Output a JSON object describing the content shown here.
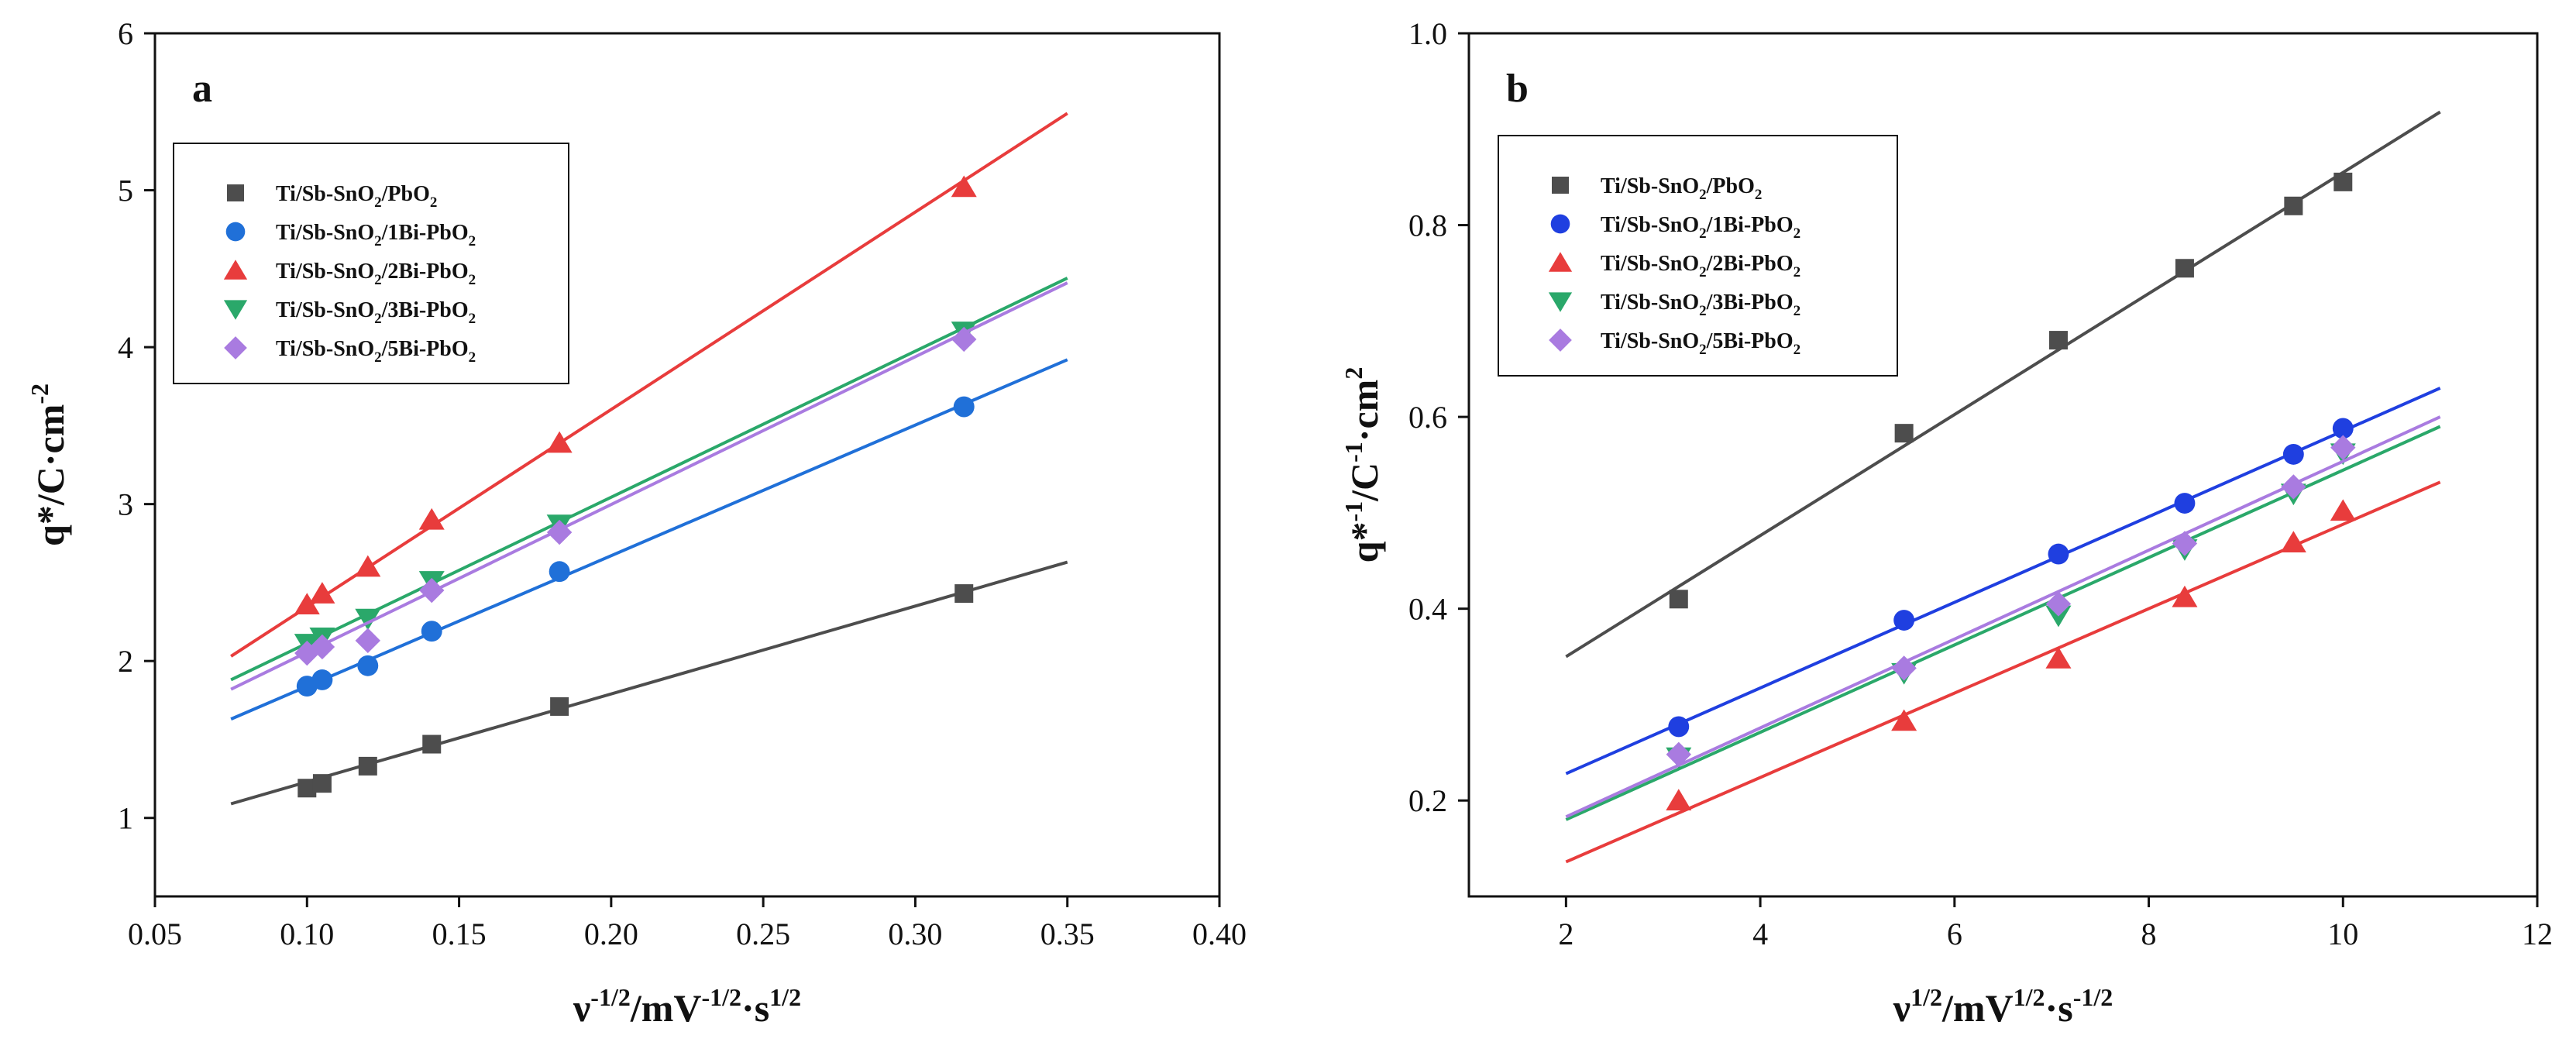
{
  "chart_data": [
    {
      "type": "scatter",
      "panel_label": "a",
      "xlabel": {
        "pre": "ν",
        "sup1": "-1/2",
        "mid": "/mV",
        "sup2": "-1/2",
        "post": "·s",
        "sup3": "1/2"
      },
      "ylabel": {
        "pre": "q*/C·cm",
        "sup": "-2"
      },
      "xlim": [
        0.05,
        0.4
      ],
      "ylim": [
        0.5,
        6
      ],
      "x_ticks": [
        "0.05",
        "0.10",
        "0.15",
        "0.20",
        "0.25",
        "0.30",
        "0.35",
        "0.40"
      ],
      "x_tick_values": [
        0.05,
        0.1,
        0.15,
        0.2,
        0.25,
        0.3,
        0.35,
        0.4
      ],
      "y_ticks": [
        "1",
        "2",
        "3",
        "4",
        "5",
        "6"
      ],
      "y_tick_values": [
        1,
        2,
        3,
        4,
        5,
        6
      ],
      "legend_position": "upper-left",
      "series": [
        {
          "name": "Ti/Sb-SnO2/PbO2",
          "label_parts": [
            "Ti/Sb-SnO",
            "2",
            "/PbO",
            "2"
          ],
          "color": "#4d4d4d",
          "marker": "square",
          "x": [
            0.1,
            0.105,
            0.12,
            0.141,
            0.183,
            0.316
          ],
          "y": [
            1.19,
            1.22,
            1.33,
            1.47,
            1.71,
            2.43
          ],
          "fit_x": [
            0.075,
            0.35
          ],
          "fit_y": [
            1.09,
            2.63
          ]
        },
        {
          "name": "Ti/Sb-SnO2/1Bi-PbO2",
          "label_parts": [
            "Ti/Sb-SnO",
            "2",
            "/1Bi-PbO",
            "2"
          ],
          "color": "#2070d8",
          "marker": "circle",
          "x": [
            0.1,
            0.105,
            0.12,
            0.141,
            0.183,
            0.316
          ],
          "y": [
            1.84,
            1.88,
            1.97,
            2.19,
            2.57,
            3.62
          ],
          "fit_x": [
            0.075,
            0.35
          ],
          "fit_y": [
            1.63,
            3.92
          ]
        },
        {
          "name": "Ti/Sb-SnO2/2Bi-PbO2",
          "label_parts": [
            "Ti/Sb-SnO",
            "2",
            "/2Bi-PbO",
            "2"
          ],
          "color": "#e83c3c",
          "marker": "triangle-up",
          "x": [
            0.1,
            0.105,
            0.12,
            0.141,
            0.183,
            0.316
          ],
          "y": [
            2.36,
            2.43,
            2.6,
            2.9,
            3.39,
            5.02
          ],
          "fit_x": [
            0.075,
            0.35
          ],
          "fit_y": [
            2.03,
            5.49
          ]
        },
        {
          "name": "Ti/Sb-SnO2/3Bi-PbO2",
          "label_parts": [
            "Ti/Sb-SnO",
            "2",
            "/3Bi-PbO",
            "2"
          ],
          "color": "#2aa86a",
          "marker": "triangle-down",
          "x": [
            0.1,
            0.105,
            0.12,
            0.141,
            0.183,
            0.316
          ],
          "y": [
            2.11,
            2.15,
            2.27,
            2.51,
            2.87,
            4.1
          ],
          "fit_x": [
            0.075,
            0.35
          ],
          "fit_y": [
            1.88,
            4.44
          ]
        },
        {
          "name": "Ti/Sb-SnO2/5Bi-PbO2",
          "label_parts": [
            "Ti/Sb-SnO",
            "2",
            "/5Bi-PbO",
            "2"
          ],
          "color": "#a97be0",
          "marker": "diamond",
          "x": [
            0.1,
            0.105,
            0.12,
            0.141,
            0.183,
            0.316
          ],
          "y": [
            2.05,
            2.09,
            2.13,
            2.45,
            2.82,
            4.05
          ],
          "fit_x": [
            0.075,
            0.35
          ],
          "fit_y": [
            1.82,
            4.41
          ]
        }
      ]
    },
    {
      "type": "scatter",
      "panel_label": "b",
      "xlabel": {
        "pre": "ν",
        "sup1": "1/2",
        "mid": "/mV",
        "sup2": "1/2",
        "post": "·s",
        "sup3": "-1/2"
      },
      "ylabel": {
        "pre": "q*",
        "sup1": "-1",
        "mid": "/C",
        "sup2": "-1",
        "post": "·cm",
        "sup3": "2"
      },
      "xlim": [
        1,
        12
      ],
      "ylim": [
        0.1,
        1.0
      ],
      "x_ticks": [
        "2",
        "4",
        "6",
        "8",
        "10",
        "12"
      ],
      "x_tick_values": [
        2,
        4,
        6,
        8,
        10,
        12
      ],
      "y_ticks": [
        "0.2",
        "0.4",
        "0.6",
        "0.8",
        "1.0"
      ],
      "y_tick_values": [
        0.2,
        0.4,
        0.6,
        0.8,
        1.0
      ],
      "legend_position": "upper-left",
      "series": [
        {
          "name": "Ti/Sb-SnO2/PbO2",
          "label_parts": [
            "Ti/Sb-SnO",
            "2",
            "/PbO",
            "2"
          ],
          "color": "#4d4d4d",
          "marker": "square",
          "x": [
            3.16,
            5.48,
            7.07,
            8.37,
            9.49,
            10.0
          ],
          "y": [
            0.41,
            0.583,
            0.68,
            0.755,
            0.82,
            0.845
          ],
          "fit_x": [
            2,
            11
          ],
          "fit_y": [
            0.35,
            0.918
          ]
        },
        {
          "name": "Ti/Sb-SnO2/1Bi-PbO2",
          "label_parts": [
            "Ti/Sb-SnO",
            "2",
            "/1Bi-PbO",
            "2"
          ],
          "color": "#1f3fe0",
          "marker": "circle",
          "x": [
            3.16,
            5.48,
            7.07,
            8.37,
            9.49,
            10.0
          ],
          "y": [
            0.277,
            0.388,
            0.457,
            0.51,
            0.561,
            0.588
          ],
          "fit_x": [
            2,
            11
          ],
          "fit_y": [
            0.228,
            0.63
          ]
        },
        {
          "name": "Ti/Sb-SnO2/2Bi-PbO2",
          "label_parts": [
            "Ti/Sb-SnO",
            "2",
            "/2Bi-PbO",
            "2"
          ],
          "color": "#e83c3c",
          "marker": "triangle-up",
          "x": [
            3.16,
            5.48,
            7.07,
            8.37,
            9.49,
            10.0
          ],
          "y": [
            0.2,
            0.283,
            0.348,
            0.412,
            0.469,
            0.502
          ],
          "fit_x": [
            2,
            11
          ],
          "fit_y": [
            0.136,
            0.532
          ]
        },
        {
          "name": "Ti/Sb-SnO2/3Bi-PbO2",
          "label_parts": [
            "Ti/Sb-SnO",
            "2",
            "/3Bi-PbO",
            "2"
          ],
          "color": "#2aa86a",
          "marker": "triangle-down",
          "x": [
            3.16,
            5.48,
            7.07,
            8.37,
            9.49,
            10.0
          ],
          "y": [
            0.245,
            0.333,
            0.393,
            0.462,
            0.52,
            0.562
          ],
          "fit_x": [
            2,
            11
          ],
          "fit_y": [
            0.18,
            0.59
          ]
        },
        {
          "name": "Ti/Sb-SnO2/5Bi-PbO2",
          "label_parts": [
            "Ti/Sb-SnO",
            "2",
            "/5Bi-PbO",
            "2"
          ],
          "color": "#a97be0",
          "marker": "diamond",
          "x": [
            3.16,
            5.48,
            7.07,
            8.37,
            9.49,
            10.0
          ],
          "y": [
            0.248,
            0.338,
            0.405,
            0.468,
            0.527,
            0.568
          ],
          "fit_x": [
            2,
            11
          ],
          "fit_y": [
            0.183,
            0.6
          ]
        }
      ]
    }
  ]
}
